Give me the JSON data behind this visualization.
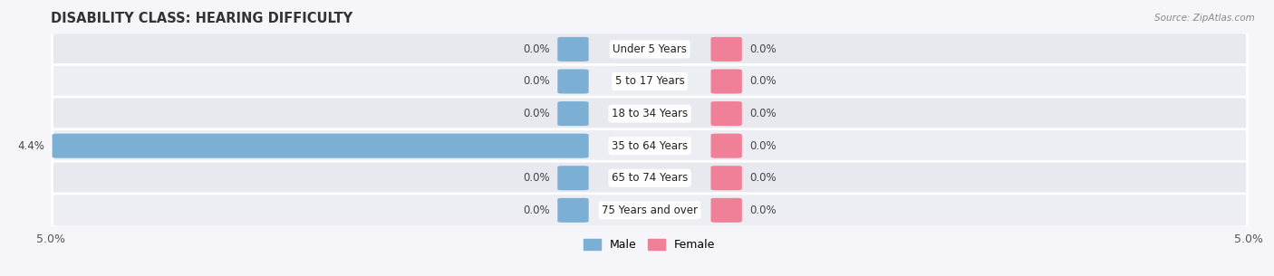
{
  "title": "DISABILITY CLASS: HEARING DIFFICULTY",
  "source": "Source: ZipAtlas.com",
  "categories": [
    "Under 5 Years",
    "5 to 17 Years",
    "18 to 34 Years",
    "35 to 64 Years",
    "65 to 74 Years",
    "75 Years and over"
  ],
  "male_values": [
    0.0,
    0.0,
    0.0,
    4.4,
    0.0,
    0.0
  ],
  "female_values": [
    0.0,
    0.0,
    0.0,
    0.0,
    0.0,
    0.0
  ],
  "male_color": "#7bafd4",
  "female_color": "#f08098",
  "row_bg_color": "#e8e9ef",
  "row_bg_color2": "#edeef3",
  "fig_bg_color": "#f5f5fa",
  "max_val": 5.0,
  "legend_male": "Male",
  "legend_female": "Female",
  "title_fontsize": 10.5,
  "label_fontsize": 8.5,
  "tick_fontsize": 9,
  "value_fontsize": 8.5
}
